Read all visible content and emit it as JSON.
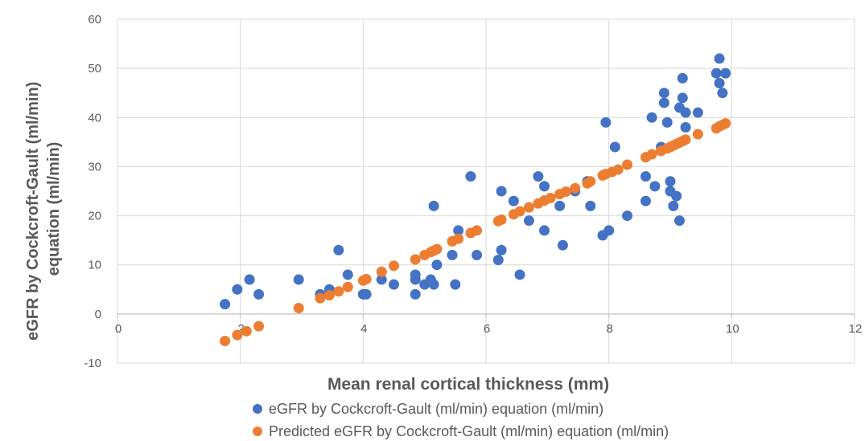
{
  "chart_data": {
    "type": "scatter",
    "xlabel": "Mean renal cortical thickness (mm)",
    "ylabel_lines": [
      "eGFR by Cockcroft-Gault (ml/min)",
      "equation (ml/min)"
    ],
    "xlim": [
      0,
      12
    ],
    "ylim": [
      -10,
      60
    ],
    "x_ticks": [
      0,
      2,
      4,
      6,
      8,
      10,
      12
    ],
    "y_ticks": [
      -10,
      0,
      10,
      20,
      30,
      40,
      50,
      60
    ],
    "grid": true,
    "legend_position": "bottom",
    "series": [
      {
        "name": "eGFR by Cockcroft-Gault (ml/min) equation (ml/min)",
        "color": "#4472C4",
        "points": [
          [
            1.75,
            2
          ],
          [
            1.95,
            5
          ],
          [
            2.15,
            7
          ],
          [
            2.3,
            4
          ],
          [
            2.95,
            7
          ],
          [
            3.3,
            4
          ],
          [
            3.45,
            5
          ],
          [
            3.6,
            13
          ],
          [
            3.75,
            8
          ],
          [
            4.0,
            4
          ],
          [
            4.05,
            4
          ],
          [
            4.3,
            7
          ],
          [
            4.5,
            6
          ],
          [
            4.85,
            4
          ],
          [
            4.85,
            7
          ],
          [
            4.85,
            8
          ],
          [
            5.0,
            6
          ],
          [
            5.1,
            7
          ],
          [
            5.15,
            6
          ],
          [
            5.15,
            22
          ],
          [
            5.2,
            10
          ],
          [
            5.45,
            12
          ],
          [
            5.5,
            6
          ],
          [
            5.55,
            17
          ],
          [
            5.75,
            28
          ],
          [
            5.85,
            12
          ],
          [
            6.2,
            11
          ],
          [
            6.25,
            13
          ],
          [
            6.25,
            25
          ],
          [
            6.45,
            23
          ],
          [
            6.55,
            8
          ],
          [
            6.7,
            19
          ],
          [
            6.85,
            28
          ],
          [
            6.95,
            26
          ],
          [
            6.95,
            17
          ],
          [
            7.2,
            22
          ],
          [
            7.25,
            14
          ],
          [
            7.45,
            25
          ],
          [
            7.65,
            27
          ],
          [
            7.7,
            22
          ],
          [
            7.9,
            16
          ],
          [
            7.95,
            39
          ],
          [
            8.0,
            17
          ],
          [
            8.1,
            34
          ],
          [
            8.3,
            20
          ],
          [
            8.6,
            28
          ],
          [
            8.6,
            23
          ],
          [
            8.7,
            40
          ],
          [
            8.75,
            26
          ],
          [
            8.85,
            34
          ],
          [
            8.9,
            45
          ],
          [
            8.9,
            43
          ],
          [
            8.95,
            39
          ],
          [
            9.0,
            27
          ],
          [
            9.0,
            25
          ],
          [
            9.05,
            22
          ],
          [
            9.1,
            24
          ],
          [
            9.15,
            19
          ],
          [
            9.15,
            42
          ],
          [
            9.2,
            44
          ],
          [
            9.2,
            48
          ],
          [
            9.25,
            38
          ],
          [
            9.25,
            41
          ],
          [
            9.45,
            41
          ],
          [
            9.75,
            49
          ],
          [
            9.8,
            52
          ],
          [
            9.8,
            47
          ],
          [
            9.85,
            45
          ],
          [
            9.9,
            49
          ]
        ]
      },
      {
        "name": "Predicted eGFR by Cockcroft-Gault (ml/min) equation (ml/min)",
        "color": "#ED7D31",
        "points": [
          [
            1.75,
            -5.5
          ],
          [
            1.95,
            -4.3
          ],
          [
            2.1,
            -3.5
          ],
          [
            2.3,
            -2.5
          ],
          [
            2.95,
            1.2
          ],
          [
            3.3,
            3.2
          ],
          [
            3.45,
            3.8
          ],
          [
            3.6,
            4.6
          ],
          [
            3.75,
            5.5
          ],
          [
            4.0,
            6.8
          ],
          [
            4.05,
            7.1
          ],
          [
            4.3,
            8.6
          ],
          [
            4.5,
            9.8
          ],
          [
            4.85,
            11.1
          ],
          [
            5.0,
            12.0
          ],
          [
            5.1,
            12.6
          ],
          [
            5.15,
            12.9
          ],
          [
            5.2,
            13.2
          ],
          [
            5.45,
            14.8
          ],
          [
            5.55,
            15.3
          ],
          [
            5.75,
            16.5
          ],
          [
            5.85,
            17.0
          ],
          [
            6.2,
            18.9
          ],
          [
            6.25,
            19.2
          ],
          [
            6.45,
            20.3
          ],
          [
            6.55,
            20.9
          ],
          [
            6.7,
            21.7
          ],
          [
            6.85,
            22.5
          ],
          [
            6.95,
            23.1
          ],
          [
            7.05,
            23.6
          ],
          [
            7.2,
            24.4
          ],
          [
            7.3,
            24.9
          ],
          [
            7.45,
            25.6
          ],
          [
            7.65,
            26.6
          ],
          [
            7.7,
            27.0
          ],
          [
            7.9,
            28.2
          ],
          [
            7.95,
            28.5
          ],
          [
            8.05,
            28.9
          ],
          [
            8.15,
            29.4
          ],
          [
            8.3,
            30.4
          ],
          [
            8.6,
            31.9
          ],
          [
            8.7,
            32.5
          ],
          [
            8.85,
            33.2
          ],
          [
            8.95,
            33.7
          ],
          [
            9.0,
            34.0
          ],
          [
            9.05,
            34.3
          ],
          [
            9.1,
            34.6
          ],
          [
            9.15,
            34.9
          ],
          [
            9.2,
            35.2
          ],
          [
            9.25,
            35.5
          ],
          [
            9.45,
            36.6
          ],
          [
            9.75,
            37.8
          ],
          [
            9.8,
            38.2
          ],
          [
            9.85,
            38.5
          ],
          [
            9.9,
            38.8
          ]
        ]
      }
    ]
  }
}
